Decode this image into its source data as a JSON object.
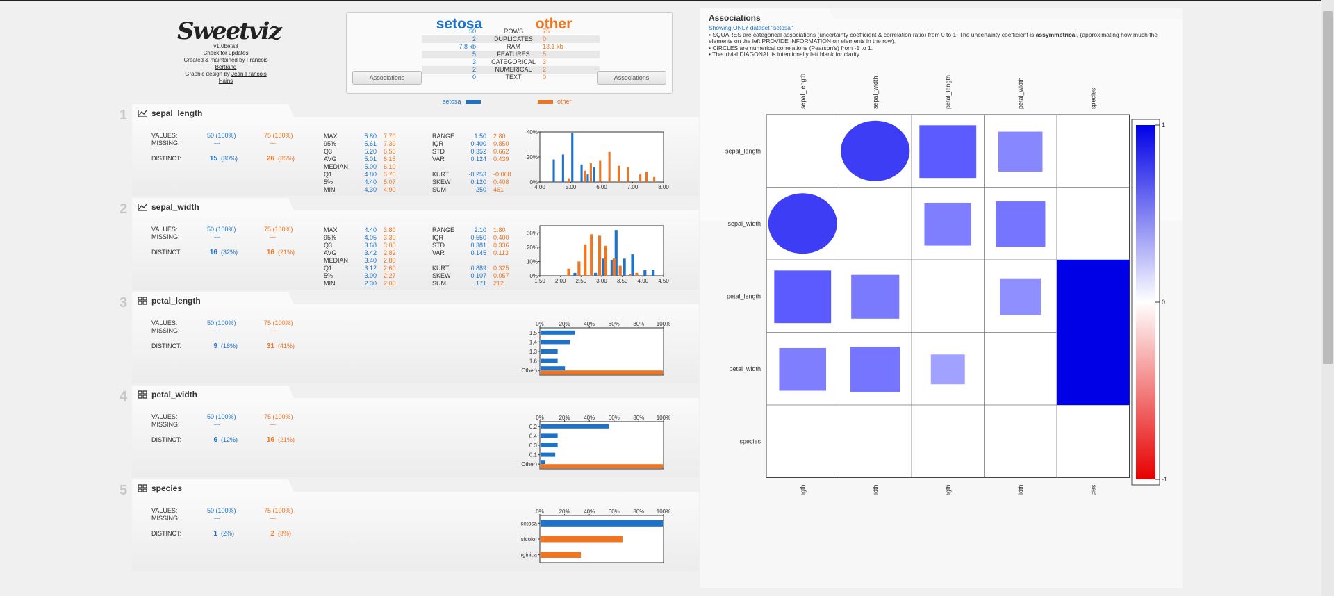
{
  "logo": {
    "text": "Sweetviz",
    "version": "v1.0beta3",
    "check": "Check for updates",
    "created": "Created & maintained by",
    "author1": "Francois Bertrand",
    "design": "Graphic design by",
    "author2": "Jean-Francois Hains"
  },
  "summary": {
    "source_name": "setosa",
    "compare_name": "other",
    "rows": [
      {
        "v1": "50",
        "label": "ROWS",
        "v2": "75"
      },
      {
        "v1": "2",
        "label": "DUPLICATES",
        "v2": "0"
      },
      {
        "v1": "7.8 kb",
        "label": "RAM",
        "v2": "13.1 kb"
      },
      {
        "v1": "5",
        "label": "FEATURES",
        "v2": "5"
      },
      {
        "v1": "3",
        "label": "CATEGORICAL",
        "v2": "3"
      },
      {
        "v1": "2",
        "label": "NUMERICAL",
        "v2": "2"
      },
      {
        "v1": "0",
        "label": "TEXT",
        "v2": "0"
      }
    ],
    "assoc_button": "Associations"
  },
  "legend": {
    "source": "setosa",
    "compare": "other"
  },
  "colors": {
    "source": "#1c73c9",
    "compare": "#f07520"
  },
  "features": [
    {
      "num": "1",
      "name": "sepal_length",
      "type": "numeric",
      "values": "50 (100%)",
      "values2": "75 (100%)",
      "missing": "---",
      "missing2": "---",
      "distinct": "15",
      "distinct_pct": "(30%)",
      "distinct2": "26",
      "distinct_pct2": "(35%)",
      "stats": [
        [
          "MAX",
          "5.80",
          "7.70"
        ],
        [
          "95%",
          "5.61",
          "7.39"
        ],
        [
          "Q3",
          "5.20",
          "6.55"
        ],
        [
          "AVG",
          "5.01",
          "6.15"
        ],
        [
          "MEDIAN",
          "5.00",
          "6.10"
        ],
        [
          "Q1",
          "4.80",
          "5.70"
        ],
        [
          "5%",
          "4.40",
          "5.07"
        ],
        [
          "MIN",
          "4.30",
          "4.90"
        ]
      ],
      "stats2": [
        [
          "RANGE",
          "1.50",
          "2.80"
        ],
        [
          "IQR",
          "0.400",
          "0.850"
        ],
        [
          "STD",
          "0.352",
          "0.662"
        ],
        [
          "VAR",
          "0.124",
          "0.439"
        ],
        null,
        [
          "KURT.",
          "-0.253",
          "-0.068"
        ],
        [
          "SKEW",
          "0.120",
          "0.408"
        ],
        [
          "SUM",
          "250",
          "461"
        ]
      ]
    },
    {
      "num": "2",
      "name": "sepal_width",
      "type": "numeric",
      "values": "50 (100%)",
      "values2": "75 (100%)",
      "missing": "---",
      "missing2": "---",
      "distinct": "16",
      "distinct_pct": "(32%)",
      "distinct2": "16",
      "distinct_pct2": "(21%)",
      "stats": [
        [
          "MAX",
          "4.40",
          "3.80"
        ],
        [
          "95%",
          "4.05",
          "3.30"
        ],
        [
          "Q3",
          "3.68",
          "3.00"
        ],
        [
          "AVG",
          "3.42",
          "2.82"
        ],
        [
          "MEDIAN",
          "3.40",
          "2.80"
        ],
        [
          "Q1",
          "3.12",
          "2.60"
        ],
        [
          "5%",
          "3.00",
          "2.27"
        ],
        [
          "MIN",
          "2.30",
          "2.00"
        ]
      ],
      "stats2": [
        [
          "RANGE",
          "2.10",
          "1.80"
        ],
        [
          "IQR",
          "0.550",
          "0.400"
        ],
        [
          "STD",
          "0.381",
          "0.336"
        ],
        [
          "VAR",
          "0.145",
          "0.113"
        ],
        null,
        [
          "KURT.",
          "0.889",
          "0.325"
        ],
        [
          "SKEW",
          "0.107",
          "0.057"
        ],
        [
          "SUM",
          "171",
          "212"
        ]
      ]
    },
    {
      "num": "3",
      "name": "petal_length",
      "type": "categorical",
      "values": "50 (100%)",
      "values2": "75 (100%)",
      "missing": "---",
      "missing2": "---",
      "distinct": "9",
      "distinct_pct": "(18%)",
      "distinct2": "31",
      "distinct_pct2": "(41%)"
    },
    {
      "num": "4",
      "name": "petal_width",
      "type": "categorical",
      "values": "50 (100%)",
      "values2": "75 (100%)",
      "missing": "---",
      "missing2": "---",
      "distinct": "6",
      "distinct_pct": "(12%)",
      "distinct2": "16",
      "distinct_pct2": "(21%)"
    },
    {
      "num": "5",
      "name": "species",
      "type": "categorical",
      "values": "50 (100%)",
      "values2": "75 (100%)",
      "missing": "---",
      "missing2": "---",
      "distinct": "1",
      "distinct_pct": "(2%)",
      "distinct2": "2",
      "distinct_pct2": "(3%)"
    }
  ],
  "labels": {
    "values": "VALUES:",
    "missing": "MISSING:",
    "distinct": "DISTINCT:"
  },
  "associations": {
    "title": "Associations",
    "desc_head": "Showing ONLY dataset \"setosa\"",
    "desc": [
      "• SQUARES are categorical associations (uncertainty coefficient & correlation ratio) from 0 to 1. The uncertainty coefficient is ",
      "assymmetrical",
      ", (approximating how much the elements on the left PROVIDE INFORMATION on elements in the row).",
      "• CIRCLES are numerical correlations (Pearson's) from -1 to 1.",
      "• The trivial DIAGONAL is intentionally left blank for clarity."
    ],
    "colorbar_ticks": [
      "1",
      "0",
      "-1"
    ]
  },
  "chart_data": [
    {
      "type": "bar",
      "title": "sepal_length histogram",
      "x": [
        4.0,
        4.5,
        5.0,
        5.5,
        6.0,
        6.5,
        7.0,
        7.5,
        8.0
      ],
      "xticks": [
        "4.00",
        "5.00",
        "6.00",
        "7.00",
        "8.00"
      ],
      "yticks": [
        "0%",
        "20%",
        "40%"
      ],
      "ylim": [
        0,
        40
      ],
      "bins": [
        4.3,
        4.4,
        4.5,
        4.6,
        4.7,
        4.8,
        4.9,
        5.0,
        5.1,
        5.2,
        5.3,
        5.4,
        5.5,
        5.6,
        5.7,
        5.8,
        5.9,
        6.0,
        6.1,
        6.2,
        6.3,
        6.4,
        6.5,
        6.6,
        6.7,
        6.8,
        6.9,
        7.0,
        7.1,
        7.2,
        7.3,
        7.4,
        7.5,
        7.6,
        7.7
      ],
      "series": [
        {
          "name": "setosa",
          "bars": [
            [
              4.45,
              18
            ],
            [
              4.75,
              22
            ],
            [
              5.05,
              39
            ],
            [
              5.35,
              14
            ],
            [
              5.55,
              6
            ],
            [
              5.75,
              12
            ]
          ]
        },
        {
          "name": "other",
          "bars": [
            [
              4.95,
              3
            ],
            [
              5.45,
              9
            ],
            [
              5.65,
              15
            ],
            [
              5.95,
              17
            ],
            [
              6.25,
              24
            ],
            [
              6.55,
              13
            ],
            [
              6.85,
              12
            ],
            [
              7.25,
              6
            ],
            [
              7.45,
              8
            ],
            [
              7.7,
              4
            ]
          ]
        }
      ],
      "xlim": [
        4.0,
        8.0
      ]
    },
    {
      "type": "bar",
      "title": "sepal_width histogram",
      "xticks": [
        "1.50",
        "2.00",
        "2.50",
        "3.00",
        "3.50",
        "4.00",
        "4.50"
      ],
      "yticks": [
        "0%",
        "10%",
        "20%",
        "30%"
      ],
      "ylim": [
        0,
        35
      ],
      "xlim": [
        1.5,
        4.5
      ],
      "series": [
        {
          "name": "setosa",
          "bars": [
            [
              2.35,
              2
            ],
            [
              2.85,
              2
            ],
            [
              3.05,
              12
            ],
            [
              3.25,
              11
            ],
            [
              3.35,
              32
            ],
            [
              3.55,
              12
            ],
            [
              3.75,
              15
            ],
            [
              4.05,
              4
            ],
            [
              4.25,
              4
            ]
          ]
        },
        {
          "name": "other",
          "bars": [
            [
              2.2,
              5
            ],
            [
              2.45,
              10
            ],
            [
              2.6,
              22
            ],
            [
              2.75,
              29
            ],
            [
              2.95,
              28
            ],
            [
              3.1,
              21
            ],
            [
              3.3,
              12
            ],
            [
              3.45,
              7
            ],
            [
              3.7,
              1
            ],
            [
              3.85,
              2
            ]
          ]
        }
      ]
    },
    {
      "type": "bar",
      "orientation": "horizontal",
      "title": "petal_length top values",
      "categories": [
        "1.5",
        "1.4",
        "1.3",
        "1.6",
        "(Other)"
      ],
      "xticks": [
        "0%",
        "20%",
        "40%",
        "60%",
        "80%",
        "100%"
      ],
      "series": [
        {
          "name": "setosa",
          "values": [
            28,
            24,
            14,
            14,
            20
          ]
        },
        {
          "name": "other",
          "values": [
            0,
            0,
            0,
            0,
            100
          ]
        }
      ]
    },
    {
      "type": "bar",
      "orientation": "horizontal",
      "title": "petal_width top values",
      "categories": [
        "0.2",
        "0.4",
        "0.3",
        "0.1",
        "(Other)"
      ],
      "xticks": [
        "0%",
        "20%",
        "40%",
        "60%",
        "80%",
        "100%"
      ],
      "series": [
        {
          "name": "setosa",
          "values": [
            56,
            14,
            14,
            12,
            4
          ]
        },
        {
          "name": "other",
          "values": [
            0,
            0,
            0,
            0,
            100
          ]
        }
      ]
    },
    {
      "type": "bar",
      "orientation": "horizontal",
      "title": "species top values",
      "categories": [
        "Iris-setosa",
        "Iris-versicolor",
        "Iris-virginica"
      ],
      "xticks": [
        "0%",
        "20%",
        "40%",
        "60%",
        "80%",
        "100%"
      ],
      "series": [
        {
          "name": "setosa",
          "values": [
            100,
            0,
            0
          ]
        },
        {
          "name": "other",
          "values": [
            0,
            67,
            33
          ]
        }
      ]
    },
    {
      "type": "heatmap",
      "title": "Associations",
      "labels": [
        "sepal_length",
        "sepal_width",
        "petal_length",
        "petal_width",
        "species"
      ],
      "cells": [
        {
          "r": 0,
          "c": 1,
          "shape": "circle",
          "value": 0.75
        },
        {
          "r": 0,
          "c": 2,
          "shape": "square",
          "value": 0.6
        },
        {
          "r": 0,
          "c": 3,
          "shape": "square",
          "value": 0.35
        },
        {
          "r": 1,
          "c": 0,
          "shape": "circle",
          "value": 0.75
        },
        {
          "r": 1,
          "c": 2,
          "shape": "square",
          "value": 0.4
        },
        {
          "r": 1,
          "c": 3,
          "shape": "square",
          "value": 0.45
        },
        {
          "r": 2,
          "c": 0,
          "shape": "square",
          "value": 0.6
        },
        {
          "r": 2,
          "c": 1,
          "shape": "square",
          "value": 0.42
        },
        {
          "r": 2,
          "c": 3,
          "shape": "square",
          "value": 0.3
        },
        {
          "r": 2,
          "c": 4,
          "shape": "square",
          "value": 1.0
        },
        {
          "r": 3,
          "c": 0,
          "shape": "square",
          "value": 0.4
        },
        {
          "r": 3,
          "c": 1,
          "shape": "square",
          "value": 0.45
        },
        {
          "r": 3,
          "c": 2,
          "shape": "square",
          "value": 0.2
        },
        {
          "r": 3,
          "c": 4,
          "shape": "square",
          "value": 1.0
        }
      ],
      "colorbar": [
        -1,
        1
      ]
    }
  ]
}
